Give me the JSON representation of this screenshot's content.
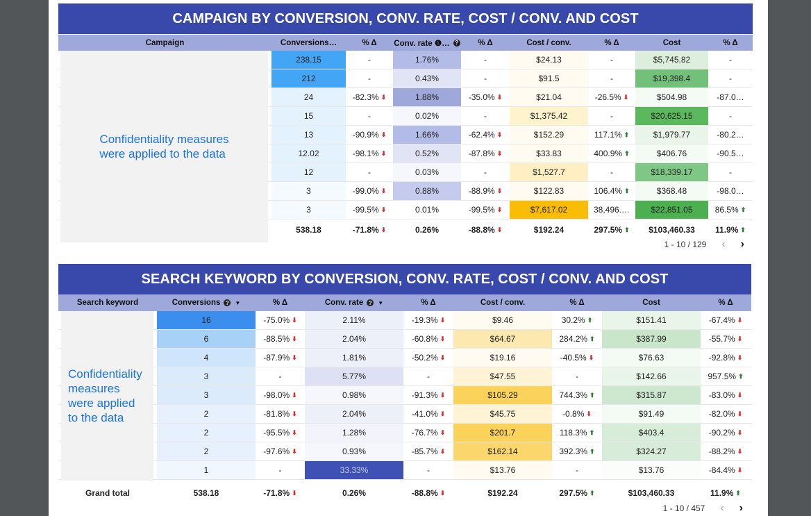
{
  "t1": {
    "title": "CAMPAIGN BY CONVERSION, CONV. RATE, COST / CONV. AND COST",
    "confidential": [
      "Confidentiality measures",
      "were applied to the data"
    ],
    "headers": [
      "Campaign",
      "Conversions…",
      "% Δ",
      "Conv. rate ❶…",
      "% Δ",
      "Cost / conv.",
      "% Δ",
      "Cost",
      "% Δ"
    ],
    "rows": [
      [
        "",
        "238.15",
        "-",
        "1.76%",
        "-",
        "$24.13",
        "-",
        "$5,745.82",
        "-"
      ],
      [
        "",
        "212",
        "-",
        "0.43%",
        "-",
        "$91.5",
        "-",
        "$19,398.4",
        "-"
      ],
      [
        "",
        "24",
        "-82.3%",
        "1.88%",
        "-35.0%",
        "$21.04",
        "-26.5%",
        "$504.98",
        "-87.0…"
      ],
      [
        "",
        "15",
        "-",
        "0.02%",
        "-",
        "$1,375.42",
        "-",
        "$20,625.15",
        "-"
      ],
      [
        "",
        "13",
        "-90.9%",
        "1.66%",
        "-62.4%",
        "$152.29",
        "117.1%",
        "$1,979.77",
        "-80.2…"
      ],
      [
        "",
        "12.02",
        "-98.1%",
        "0.52%",
        "-87.8%",
        "$33.83",
        "400.9%",
        "$406.76",
        "-90.5…"
      ],
      [
        "",
        "12",
        "-",
        "0.03%",
        "-",
        "$1,527.7",
        "-",
        "$18,339.17",
        "-"
      ],
      [
        "",
        "3",
        "-99.0%",
        "0.88%",
        "-88.9%",
        "$122.83",
        "106.4%",
        "$368.48",
        "-98.0…"
      ],
      [
        "",
        "3",
        "-99.5%",
        "0.01%",
        "-99.5%",
        "$7,617.02",
        "38,496.…",
        "$22,851.05",
        "86.5%"
      ]
    ],
    "total": [
      "",
      "538.18",
      "-71.8%",
      "0.26%",
      "-88.8%",
      "$192.24",
      "297.5%",
      "$103,460.33",
      "11.9%"
    ],
    "pager": "1 - 10 / 129"
  },
  "t2": {
    "title": "SEARCH KEYWORD BY CONVERSION, CONV. RATE, COST / CONV. AND COST",
    "confidential": [
      "Confidentiality",
      "measures",
      "were applied",
      "to the data"
    ],
    "headers": [
      "Search keyword",
      "Conversions",
      "% Δ",
      "Conv. rate",
      "% Δ",
      "Cost / conv.",
      "% Δ",
      "Cost",
      "% Δ"
    ],
    "rows": [
      [
        "",
        "16",
        "-75.0%",
        "2.11%",
        "-19.3%",
        "$9.46",
        "30.2%",
        "$151.41",
        "-67.4%"
      ],
      [
        "",
        "6",
        "-88.5%",
        "2.04%",
        "-60.8%",
        "$64.67",
        "284.2%",
        "$387.99",
        "-55.7%"
      ],
      [
        "",
        "4",
        "-87.9%",
        "1.81%",
        "-50.2%",
        "$19.16",
        "-40.5%",
        "$76.63",
        "-92.8%"
      ],
      [
        "",
        "3",
        "-",
        "5.77%",
        "-",
        "$47.55",
        "-",
        "$142.66",
        "957.5%"
      ],
      [
        "",
        "3",
        "-98.0%",
        "0.98%",
        "-91.3%",
        "$105.29",
        "744.3%",
        "$315.87",
        "-83.0%"
      ],
      [
        "",
        "2",
        "-81.8%",
        "2.04%",
        "-41.0%",
        "$45.75",
        "-0.8%",
        "$91.49",
        "-82.0%"
      ],
      [
        "",
        "2",
        "-95.5%",
        "1.28%",
        "-76.7%",
        "$201.7",
        "118.3%",
        "$403.4",
        "-90.2%"
      ],
      [
        "",
        "2",
        "-97.6%",
        "0.93%",
        "-85.7%",
        "$162.14",
        "392.3%",
        "$324.27",
        "-88.2%"
      ],
      [
        "",
        "1",
        "-",
        "33.33%",
        "-",
        "$13.76",
        "-",
        "$13.76",
        "-84.4%"
      ]
    ],
    "total": [
      "Grand total",
      "538.18",
      "-71.8%",
      "0.26%",
      "-88.8%",
      "$192.24",
      "297.5%",
      "$103,460.33",
      "11.9%"
    ],
    "pager": "1 - 10 / 457"
  },
  "colors": {
    "title_bg": "#3949ab",
    "header_bg": "#9fa8da",
    "arrow_down": "#d32f2f",
    "arrow_up": "#2e7d32",
    "confidential_text": "#1a73e8"
  },
  "icons": {
    "prev": "chevron-left-icon",
    "next": "chevron-right-icon",
    "info": "info-icon",
    "sort": "sort-down-icon"
  }
}
